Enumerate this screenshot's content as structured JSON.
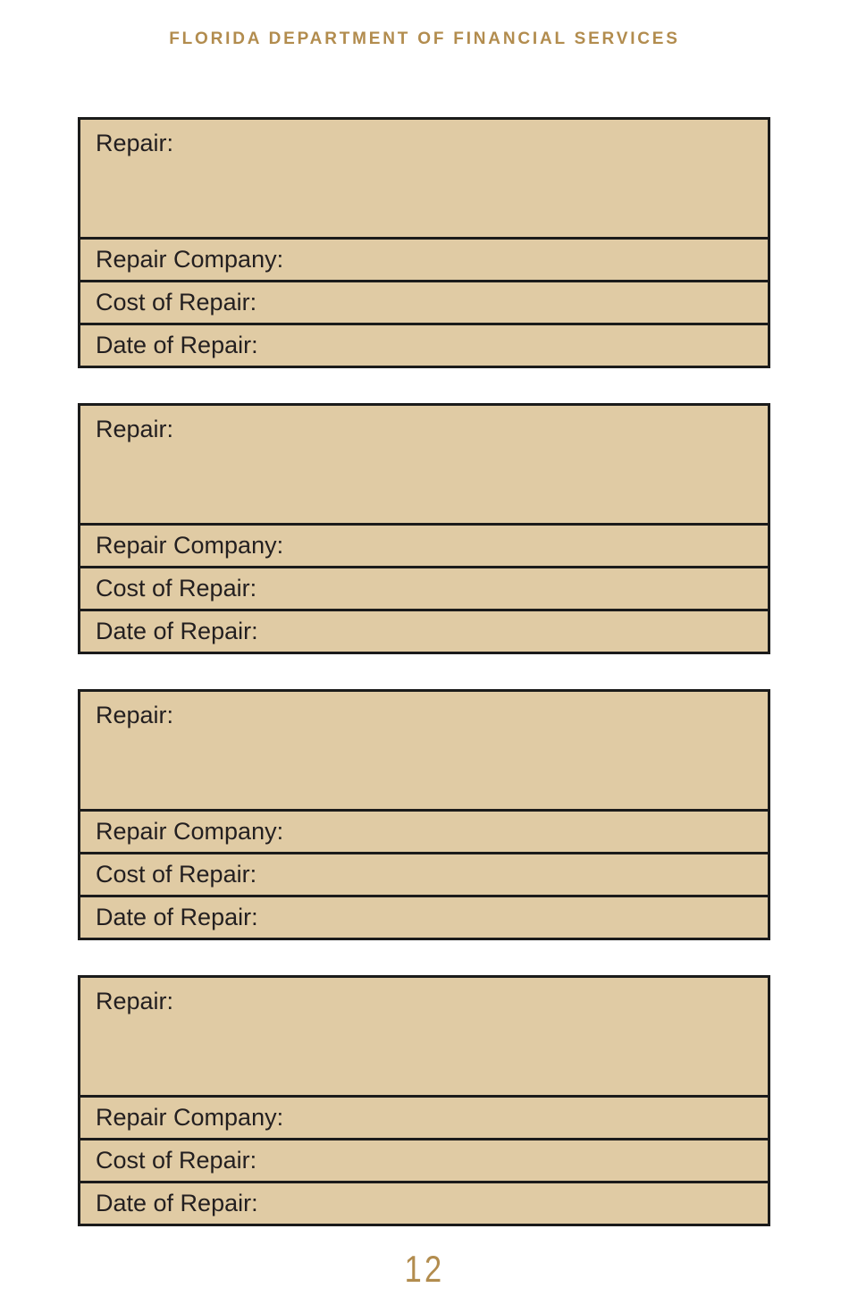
{
  "page": {
    "header": "FLORIDA DEPARTMENT OF FINANCIAL SERVICES",
    "page_number": "12"
  },
  "colors": {
    "gold": "#b28c4e",
    "block_bg": "#e0cba4",
    "border": "#1b1b1b",
    "text": "#231f20",
    "page_bg": "#ffffff"
  },
  "blocks": [
    {
      "repair_label": "Repair:",
      "repair_value": "",
      "company_label": "Repair Company:",
      "company_value": "",
      "cost_label": "Cost of Repair:",
      "cost_value": "",
      "date_label": "Date of Repair:",
      "date_value": ""
    },
    {
      "repair_label": "Repair:",
      "repair_value": "",
      "company_label": "Repair Company:",
      "company_value": "",
      "cost_label": "Cost of Repair:",
      "cost_value": "",
      "date_label": "Date of Repair:",
      "date_value": ""
    },
    {
      "repair_label": "Repair:",
      "repair_value": "",
      "company_label": "Repair Company:",
      "company_value": "",
      "cost_label": "Cost of Repair:",
      "cost_value": "",
      "date_label": "Date of Repair:",
      "date_value": ""
    },
    {
      "repair_label": "Repair:",
      "repair_value": "",
      "company_label": "Repair Company:",
      "company_value": "",
      "cost_label": "Cost of Repair:",
      "cost_value": "",
      "date_label": "Date of Repair:",
      "date_value": ""
    }
  ]
}
